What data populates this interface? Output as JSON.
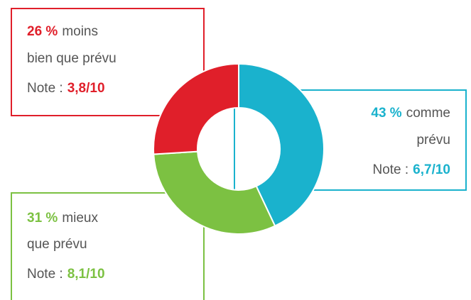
{
  "chart_data": {
    "type": "donut",
    "categories": [
      [
        "comme",
        "prévu"
      ],
      [
        "mieux",
        "que prévu"
      ],
      [
        "moins",
        "bien que prévu"
      ]
    ],
    "values": [
      43,
      31,
      26
    ],
    "value_labels": [
      "43 %",
      "31 %",
      "26 %"
    ],
    "colors": [
      "#1ab2cd",
      "#7cc142",
      "#e01f2a"
    ],
    "note_label": "Note :",
    "notes": [
      "6,7/10",
      "8,1/10",
      "3,8/10"
    ]
  }
}
